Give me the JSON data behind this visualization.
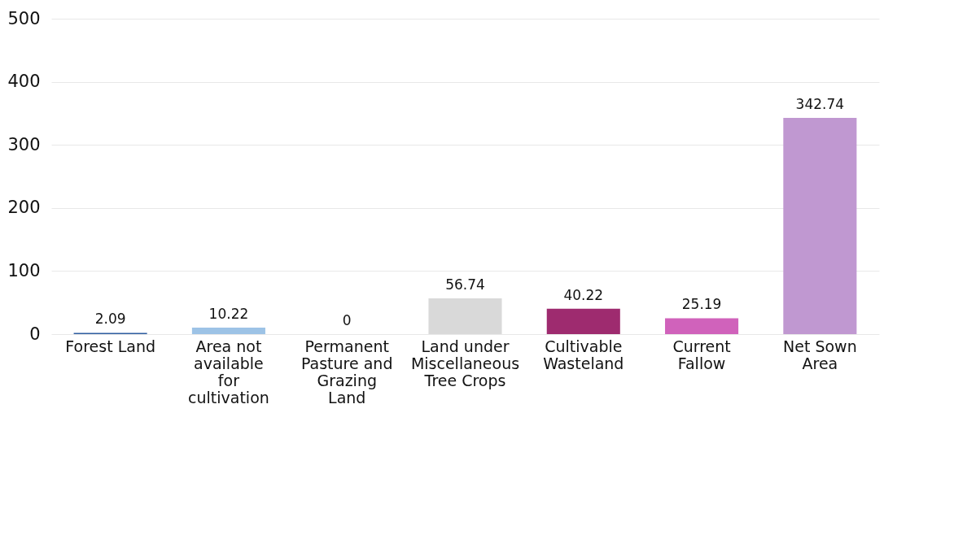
{
  "chart_data": {
    "type": "bar",
    "categories": [
      "Forest Land",
      "Area not available for cultivation",
      "Permanent Pasture and Grazing Land",
      "Land under Miscellaneous Tree Crops",
      "Cultivable Wasteland",
      "Current Fallow",
      "Net Sown Area"
    ],
    "values": [
      2.09,
      10.22,
      0,
      56.74,
      40.22,
      25.19,
      342.74
    ],
    "colors": [
      "#2e5d9f",
      "#9dc3e6",
      "#1a1a1a",
      "#d9d9d9",
      "#9e2b6f",
      "#d062bb",
      "#c098d1"
    ],
    "ylim": [
      0,
      500
    ],
    "yticks": [
      0,
      100,
      200,
      300,
      400,
      500
    ],
    "grid": "y",
    "data_labels": true
  }
}
